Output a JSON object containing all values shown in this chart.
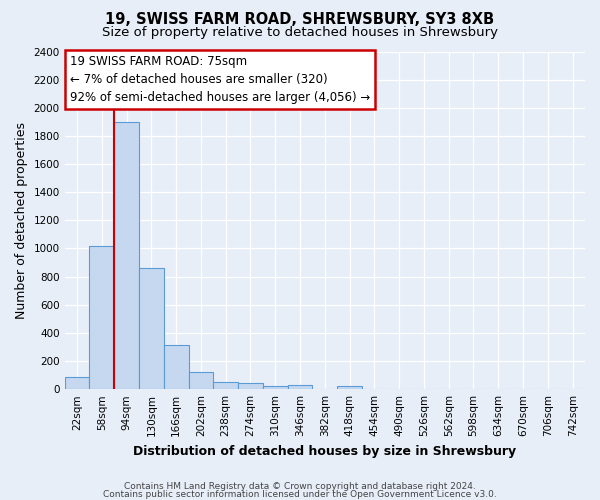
{
  "title": "19, SWISS FARM ROAD, SHREWSBURY, SY3 8XB",
  "subtitle": "Size of property relative to detached houses in Shrewsbury",
  "xlabel": "Distribution of detached houses by size in Shrewsbury",
  "ylabel": "Number of detached properties",
  "bin_labels": [
    "22sqm",
    "58sqm",
    "94sqm",
    "130sqm",
    "166sqm",
    "202sqm",
    "238sqm",
    "274sqm",
    "310sqm",
    "346sqm",
    "382sqm",
    "418sqm",
    "454sqm",
    "490sqm",
    "526sqm",
    "562sqm",
    "598sqm",
    "634sqm",
    "670sqm",
    "706sqm",
    "742sqm"
  ],
  "bar_values": [
    90,
    1020,
    1900,
    860,
    315,
    120,
    50,
    45,
    20,
    30,
    0,
    20,
    0,
    0,
    0,
    0,
    0,
    0,
    0,
    0,
    0
  ],
  "bar_color": "#c5d8f0",
  "bar_edge_color": "#5b9bd5",
  "red_line_x": 1.5,
  "annotation_text": "19 SWISS FARM ROAD: 75sqm\n← 7% of detached houses are smaller (320)\n92% of semi-detached houses are larger (4,056) →",
  "ylim": [
    0,
    2400
  ],
  "yticks": [
    0,
    200,
    400,
    600,
    800,
    1000,
    1200,
    1400,
    1600,
    1800,
    2000,
    2200,
    2400
  ],
  "footer_line1": "Contains HM Land Registry data © Crown copyright and database right 2024.",
  "footer_line2": "Contains public sector information licensed under the Open Government Licence v3.0.",
  "bg_color": "#e8eef8",
  "grid_color": "#ffffff",
  "annotation_box_color": "#ffffff",
  "annotation_box_edge": "#cc0000",
  "red_line_color": "#cc0000",
  "title_fontsize": 10.5,
  "subtitle_fontsize": 9.5,
  "axis_label_fontsize": 9,
  "tick_fontsize": 7.5,
  "annotation_fontsize": 8.5,
  "footer_fontsize": 6.5
}
